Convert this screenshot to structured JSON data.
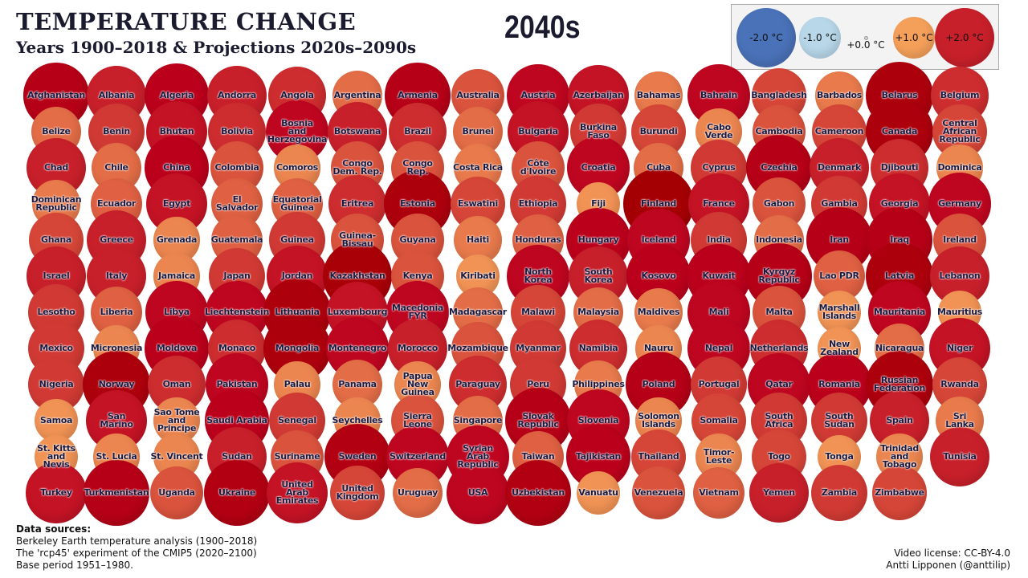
{
  "header": {
    "title": "TEMPERATURE CHANGE",
    "subtitle": "Years 1900–2018 & Projections 2020s–2090s",
    "period": "2040s"
  },
  "legend": {
    "items": [
      {
        "value": -2.0,
        "label": "-2.0 °C",
        "color": "#4a72b8"
      },
      {
        "value": -1.0,
        "label": "-1.0 °C",
        "color": "#b8d8ea"
      },
      {
        "value": 0.0,
        "label": "+0.0 °C",
        "color": "#f0f0f0"
      },
      {
        "value": 1.0,
        "label": "+1.0 °C",
        "color": "#f5a05a"
      },
      {
        "value": 2.0,
        "label": "+2.0 °C",
        "color": "#c8202a"
      }
    ]
  },
  "chart_data": {
    "type": "bubble-grid",
    "categories": [
      "Afghanistan",
      "Albania",
      "Algeria",
      "Andorra",
      "Angola",
      "Argentina",
      "Armenia",
      "Australia",
      "Austria",
      "Azerbaijan",
      "Bahamas",
      "Bahrain",
      "Bangladesh",
      "Barbados",
      "Belarus",
      "Belgium",
      "Belize",
      "Benin",
      "Bhutan",
      "Bolivia",
      "Bosnia\nand\nHerzegovina",
      "Botswana",
      "Brazil",
      "Brunei",
      "Bulgaria",
      "Burkina\nFaso",
      "Burundi",
      "Cabo\nVerde",
      "Cambodia",
      "Cameroon",
      "Canada",
      "Central\nAfrican\nRepublic",
      "Chad",
      "Chile",
      "China",
      "Colombia",
      "Comoros",
      "Congo\nDem. Rep.",
      "Congo\nRep.",
      "Costa Rica",
      "Côte\nd'Ivoire",
      "Croatia",
      "Cuba",
      "Cyprus",
      "Czechia",
      "Denmark",
      "Djibouti",
      "Dominica",
      "Dominican\nRepublic",
      "Ecuador",
      "Egypt",
      "El\nSalvador",
      "Equatorial\nGuinea",
      "Eritrea",
      "Estonia",
      "Eswatini",
      "Ethiopia",
      "Fiji",
      "Finland",
      "France",
      "Gabon",
      "Gambia",
      "Georgia",
      "Germany",
      "Ghana",
      "Greece",
      "Grenada",
      "Guatemala",
      "Guinea",
      "Guinea-\nBissau",
      "Guyana",
      "Haiti",
      "Honduras",
      "Hungary",
      "Iceland",
      "India",
      "Indonesia",
      "Iran",
      "Iraq",
      "Ireland",
      "Israel",
      "Italy",
      "Jamaica",
      "Japan",
      "Jordan",
      "Kazakhstan",
      "Kenya",
      "Kiribati",
      "North\nKorea",
      "South\nKorea",
      "Kosovo",
      "Kuwait",
      "Kyrgyz\nRepublic",
      "Lao PDR",
      "Latvia",
      "Lebanon",
      "Lesotho",
      "Liberia",
      "Libya",
      "Liechtenstein",
      "Lithuania",
      "Luxembourg",
      "Macedonia\nFYR",
      "Madagascar",
      "Malawi",
      "Malaysia",
      "Maldives",
      "Mali",
      "Malta",
      "Marshall\nIslands",
      "Mauritania",
      "Mauritius",
      "Mexico",
      "Micronesia",
      "Moldova",
      "Monaco",
      "Mongolia",
      "Montenegro",
      "Morocco",
      "Mozambique",
      "Myanmar",
      "Namibia",
      "Nauru",
      "Nepal",
      "Netherlands",
      "New\nZealand",
      "Nicaragua",
      "Niger",
      "Nigeria",
      "Norway",
      "Oman",
      "Pakistan",
      "Palau",
      "Panama",
      "Papua\nNew\nGuinea",
      "Paraguay",
      "Peru",
      "Philippines",
      "Poland",
      "Portugal",
      "Qatar",
      "Romania",
      "Russian\nFederation",
      "Rwanda",
      "Samoa",
      "San\nMarino",
      "Sao Tome\nand\nPrincipe",
      "Saudi Arabia",
      "Senegal",
      "Seychelles",
      "Sierra\nLeone",
      "Singapore",
      "Slovak\nRepublic",
      "Slovenia",
      "Solomon\nIslands",
      "Somalia",
      "South\nAfrica",
      "South\nSudan",
      "Spain",
      "Sri\nLanka",
      "St. Kitts\nand\nNevis",
      "St. Lucia",
      "St. Vincent",
      "Sudan",
      "Suriname",
      "Sweden",
      "Switzerland",
      "Syrian\nArab\nRepublic",
      "Taiwan",
      "Tajikistan",
      "Thailand",
      "Timor-\nLeste",
      "Togo",
      "Tonga",
      "Trinidad\nand\nTobago",
      "Tunisia",
      "Turkey",
      "Turkmenistan",
      "Uganda",
      "Ukraine",
      "United\nArab\nEmirates",
      "United\nKingdom",
      "Uruguay",
      "USA",
      "Uzbekistan",
      "Vanuatu",
      "Venezuela",
      "Vietnam",
      "Yemen",
      "Zambia",
      "Zimbabwe"
    ],
    "values": [
      2.4,
      2.0,
      2.3,
      2.0,
      1.9,
      1.4,
      2.4,
      1.6,
      2.2,
      2.1,
      1.3,
      2.2,
      1.7,
      1.3,
      2.6,
      1.9,
      1.4,
      1.8,
      2.1,
      1.9,
      2.2,
      2.0,
      1.9,
      1.4,
      2.1,
      1.8,
      1.7,
      1.2,
      1.6,
      1.7,
      2.6,
      1.7,
      2.0,
      1.4,
      2.3,
      1.6,
      1.2,
      1.6,
      1.6,
      1.3,
      1.6,
      2.2,
      1.4,
      1.8,
      2.4,
      2.0,
      1.9,
      1.2,
      1.3,
      1.5,
      2.1,
      1.5,
      1.5,
      1.9,
      2.6,
      1.7,
      1.8,
      1.1,
      2.8,
      2.1,
      1.6,
      1.8,
      2.1,
      2.2,
      1.7,
      2.0,
      1.2,
      1.5,
      1.8,
      1.6,
      1.6,
      1.3,
      1.5,
      2.3,
      2.2,
      1.8,
      1.4,
      2.4,
      2.4,
      1.6,
      2.0,
      2.0,
      1.2,
      1.8,
      2.1,
      2.7,
      1.6,
      1.1,
      2.2,
      2.0,
      2.3,
      2.3,
      2.4,
      1.5,
      2.6,
      2.0,
      1.8,
      1.5,
      2.2,
      2.2,
      2.6,
      2.1,
      2.2,
      1.4,
      1.7,
      1.4,
      1.3,
      2.2,
      1.6,
      1.1,
      2.2,
      1.1,
      1.8,
      1.2,
      2.3,
      1.9,
      2.6,
      2.2,
      2.0,
      1.6,
      1.8,
      1.9,
      1.2,
      2.2,
      1.9,
      1.1,
      1.4,
      2.1,
      1.8,
      2.6,
      1.9,
      2.2,
      1.2,
      1.4,
      1.2,
      1.9,
      1.8,
      1.3,
      2.4,
      1.8,
      2.2,
      2.3,
      2.6,
      1.7,
      1.1,
      2.1,
      1.2,
      2.3,
      1.8,
      1.2,
      1.6,
      1.4,
      2.4,
      2.2,
      1.2,
      1.7,
      1.8,
      1.8,
      2.0,
      1.3,
      1.1,
      1.2,
      1.2,
      2.0,
      1.6,
      2.5,
      2.2,
      2.2,
      1.5,
      2.3,
      1.7,
      1.2,
      1.7,
      1.1,
      1.2,
      2.0,
      2.1,
      2.4,
      1.6,
      2.5,
      2.1,
      1.7,
      1.4,
      2.2,
      2.5,
      1.1,
      1.6,
      1.5,
      2.0,
      1.8,
      1.7
    ]
  },
  "footer": {
    "sources_heading": "Data sources:",
    "sources": [
      "Berkeley Earth temperature analysis (1900–2018)",
      "The 'rcp45' experiment of the CMIP5 (2020–2100)",
      "Base period 1951–1980."
    ],
    "license": "Video license: CC-BY-4.0",
    "author": "Antti Lipponen (@anttilip)"
  }
}
